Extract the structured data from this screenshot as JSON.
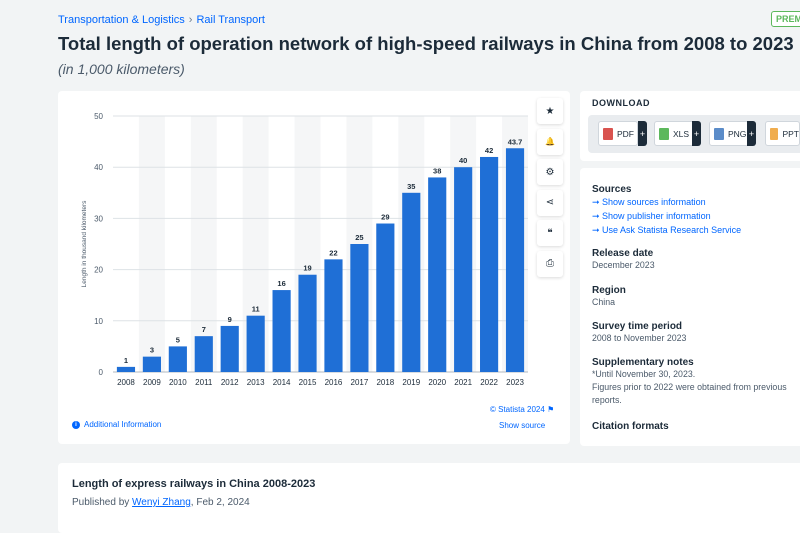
{
  "breadcrumb": {
    "item1": "Transportation & Logistics",
    "separator": "›",
    "item2": "Rail Transport"
  },
  "premium_badge": "PREMIUM",
  "page": {
    "title": "Total length of operation network of high-speed railways in China from 2008 to 2023",
    "subtitle": "(in 1,000 kilometers)"
  },
  "tools": [
    {
      "name": "star-icon",
      "glyph": "★"
    },
    {
      "name": "bell-icon",
      "glyph": "🔔"
    },
    {
      "name": "gear-icon",
      "glyph": "⚙"
    },
    {
      "name": "share-icon",
      "glyph": "⋖"
    },
    {
      "name": "quote-icon",
      "glyph": "❝"
    },
    {
      "name": "print-icon",
      "glyph": "⎙"
    }
  ],
  "chart_credit": "© Statista 2024",
  "additional_info": "Additional Information",
  "show_source": "Show source",
  "download": {
    "title": "DOWNLOAD",
    "buttons": [
      {
        "label": "PDF",
        "color": "#d9534f"
      },
      {
        "label": "XLS",
        "color": "#5cb85c"
      },
      {
        "label": "PNG",
        "color": "#5b8cc9"
      },
      {
        "label": "PPT",
        "color": "#f0ad4e"
      }
    ]
  },
  "meta": {
    "sources_title": "Sources",
    "sources_links": [
      "Show sources information",
      "Show publisher information",
      "Use Ask Statista Research Service"
    ],
    "release_title": "Release date",
    "release_value": "December 2023",
    "region_title": "Region",
    "region_value": "China",
    "survey_title": "Survey time period",
    "survey_value": "2008 to November 2023",
    "notes_title": "Supplementary notes",
    "notes_line1": "*Until November 30, 2023.",
    "notes_line2": "Figures prior to 2022 were obtained from previous",
    "notes_line3": "reports.",
    "citation_title": "Citation formats"
  },
  "bottom": {
    "title": "Length of express railways in China 2008-2023",
    "published_by": "Published by",
    "author": "Wenyi Zhang",
    "date": ", Feb 2, 2024"
  },
  "chart_data": {
    "type": "bar",
    "title": "Total length of operation network of high-speed railways in China from 2008 to 2023",
    "xlabel": "",
    "ylabel": "Length in thousand kilometers",
    "ylim": [
      0,
      50
    ],
    "yticks": [
      0,
      10,
      20,
      30,
      40,
      50
    ],
    "categories": [
      "2008",
      "2009",
      "2010",
      "2011",
      "2012",
      "2013",
      "2014",
      "2015",
      "2016",
      "2017",
      "2018",
      "2019",
      "2020",
      "2021",
      "2022",
      "2023"
    ],
    "values": [
      1,
      3,
      5,
      7,
      9,
      11,
      16,
      19,
      22,
      25,
      29,
      35,
      38,
      40,
      42,
      43.7
    ],
    "labels": [
      "1",
      "3",
      "5",
      "7",
      "9",
      "11",
      "16",
      "19",
      "22",
      "25",
      "29",
      "35",
      "38",
      "40",
      "42",
      "43.7"
    ],
    "bar_color": "#1f6fd6",
    "grid": true
  }
}
